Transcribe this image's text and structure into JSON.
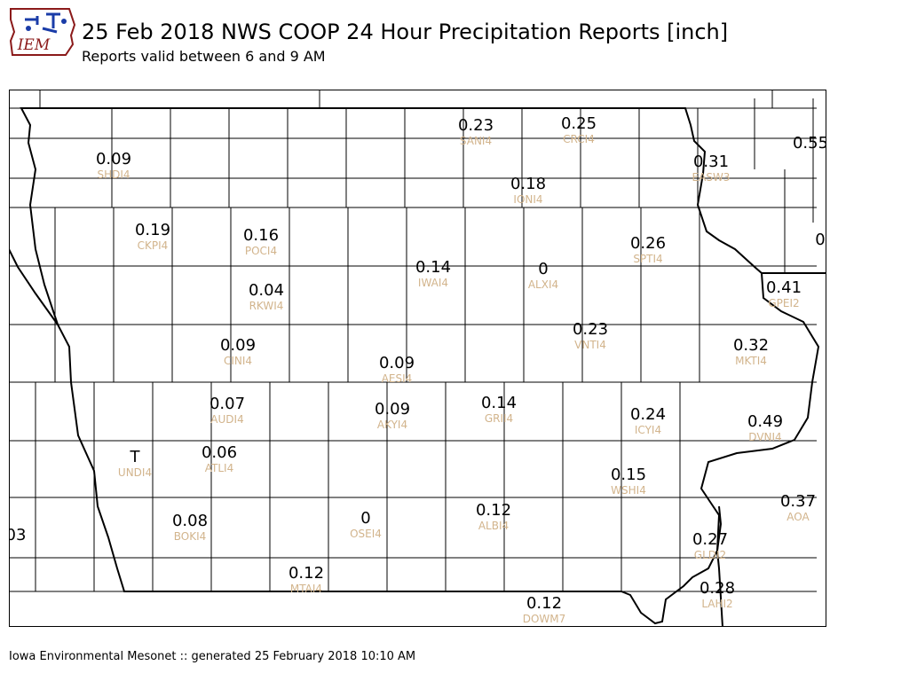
{
  "header": {
    "logo_text": "IEM",
    "title": "25 Feb 2018 NWS COOP 24 Hour Precipitation Reports [inch]",
    "subtitle": "Reports valid between 6 and 9 AM"
  },
  "footer": {
    "credit": "Iowa Environmental Mesonet :: generated 25 February 2018 10:10 AM"
  },
  "colors": {
    "value_text": "#000000",
    "station_id_text": "#d2b48c",
    "boundary": "#000000"
  },
  "stations": [
    {
      "value": "0.09",
      "id": "SHDI4"
    },
    {
      "value": "0.23",
      "id": "SANI4"
    },
    {
      "value": "0.25",
      "id": "CRCI4"
    },
    {
      "value": "0.31",
      "id": "EASW3"
    },
    {
      "value": "0.55",
      "id": ""
    },
    {
      "value": "0.18",
      "id": "IONI4"
    },
    {
      "value": "0.19",
      "id": "CKPI4"
    },
    {
      "value": "0.16",
      "id": "POCI4"
    },
    {
      "value": "0.26",
      "id": "SPTI4"
    },
    {
      "value": "0",
      "id": ""
    },
    {
      "value": "0.14",
      "id": "IWAI4"
    },
    {
      "value": "0",
      "id": "ALXI4"
    },
    {
      "value": "0.04",
      "id": "RKWI4"
    },
    {
      "value": "0.41",
      "id": "GPEI2"
    },
    {
      "value": "0.23",
      "id": "VNTI4"
    },
    {
      "value": "0.09",
      "id": "CINI4"
    },
    {
      "value": "0.32",
      "id": "MKTI4"
    },
    {
      "value": "0.09",
      "id": "AESI4"
    },
    {
      "value": "0.07",
      "id": "AUDI4"
    },
    {
      "value": "0.09",
      "id": "AKYI4"
    },
    {
      "value": "0.14",
      "id": "GRII4"
    },
    {
      "value": "0.24",
      "id": "ICYI4"
    },
    {
      "value": "0.49",
      "id": "DVNI4"
    },
    {
      "value": "T",
      "id": "UNDI4"
    },
    {
      "value": "0.06",
      "id": "ATLI4"
    },
    {
      "value": "0.15",
      "id": "WSHI4"
    },
    {
      "value": "0.37",
      "id": "AOA"
    },
    {
      "value": "0.08",
      "id": "BOKI4"
    },
    {
      "value": "0",
      "id": "OSEI4"
    },
    {
      "value": "0.12",
      "id": "ALBI4"
    },
    {
      "value": "03",
      "id": ""
    },
    {
      "value": "0.27",
      "id": "GLDI2"
    },
    {
      "value": "0.12",
      "id": "MTAI4"
    },
    {
      "value": "0.28",
      "id": "LAHI2"
    },
    {
      "value": "0.12",
      "id": "DOWM7"
    }
  ]
}
